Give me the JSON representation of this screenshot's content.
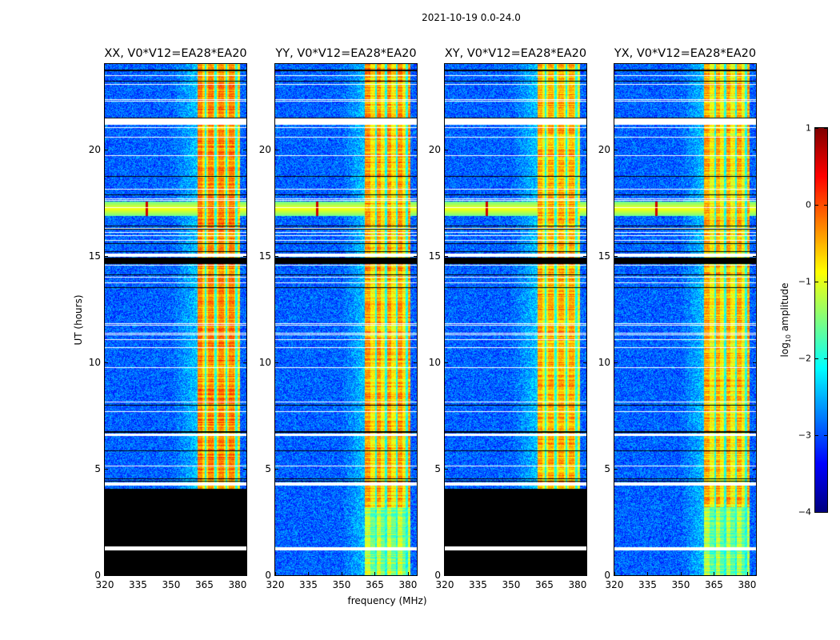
{
  "chart_data": {
    "type": "heatmap",
    "title": "2021-10-19 0.0-24.0",
    "xlabel": "frequency (MHz)",
    "ylabel": "UT (hours)",
    "xlim": [
      320,
      384
    ],
    "ylim": [
      0,
      24
    ],
    "xticks": [
      "320",
      "335",
      "350",
      "365",
      "380"
    ],
    "xtick_values": [
      320,
      335,
      350,
      365,
      380
    ],
    "yticks": [
      "0",
      "5",
      "10",
      "15",
      "20"
    ],
    "ytick_values": [
      0,
      5,
      10,
      15,
      20
    ],
    "colormap": "jet",
    "colorbar": {
      "label_main": "log",
      "label_sub": "10",
      "label_rest": " amplitude",
      "clim": [
        -4,
        1
      ],
      "ticks": [
        "−4",
        "−3",
        "−2",
        "−1",
        "0",
        "1"
      ],
      "tick_values": [
        -4,
        -3,
        -2,
        -1,
        0,
        1
      ]
    },
    "background_level": -2.9,
    "band_edge_level": -2.3,
    "rfi_event": {
      "hour": 17.2,
      "level": -1.6,
      "spike_freq": 339,
      "spike_level": 0.6
    },
    "band_gaps_mhz": [
      365.5,
      370,
      375,
      379.5
    ],
    "flagged_hours_white": [
      [
        21.15,
        21.45
      ],
      [
        14.95,
        15.1
      ],
      [
        6.55,
        6.65
      ],
      [
        4.2,
        4.35
      ]
    ],
    "flagged_hours_black": [
      [
        14.6,
        14.9
      ],
      [
        6.68,
        6.75
      ],
      [
        23.65,
        23.72
      ]
    ],
    "panels": [
      {
        "title": "XX, V0*V12=EA28*EA20",
        "band": [
          361.8,
          381.2
        ],
        "band_level": -0.35,
        "no_data_hours": [
          0,
          4.05
        ],
        "extra_white_hours": [
          [
            1.15,
            1.35
          ]
        ]
      },
      {
        "title": "YY, V0*V12=EA28*EA20",
        "band": [
          360.6,
          381.0
        ],
        "band_level": -0.45,
        "no_data_hours": null,
        "extra_white_hours": [
          [
            1.15,
            1.3
          ]
        ]
      },
      {
        "title": "XY, V0*V12=EA28*EA20",
        "band": [
          361.8,
          381.2
        ],
        "band_level": -0.55,
        "no_data_hours": [
          0,
          4.05
        ],
        "extra_white_hours": [
          [
            1.15,
            1.35
          ]
        ]
      },
      {
        "title": "YX, V0*V12=EA28*EA20",
        "band": [
          360.6,
          381.0
        ],
        "band_level": -0.55,
        "no_data_hours": null,
        "extra_white_hours": [
          [
            1.15,
            1.3
          ]
        ]
      }
    ]
  }
}
